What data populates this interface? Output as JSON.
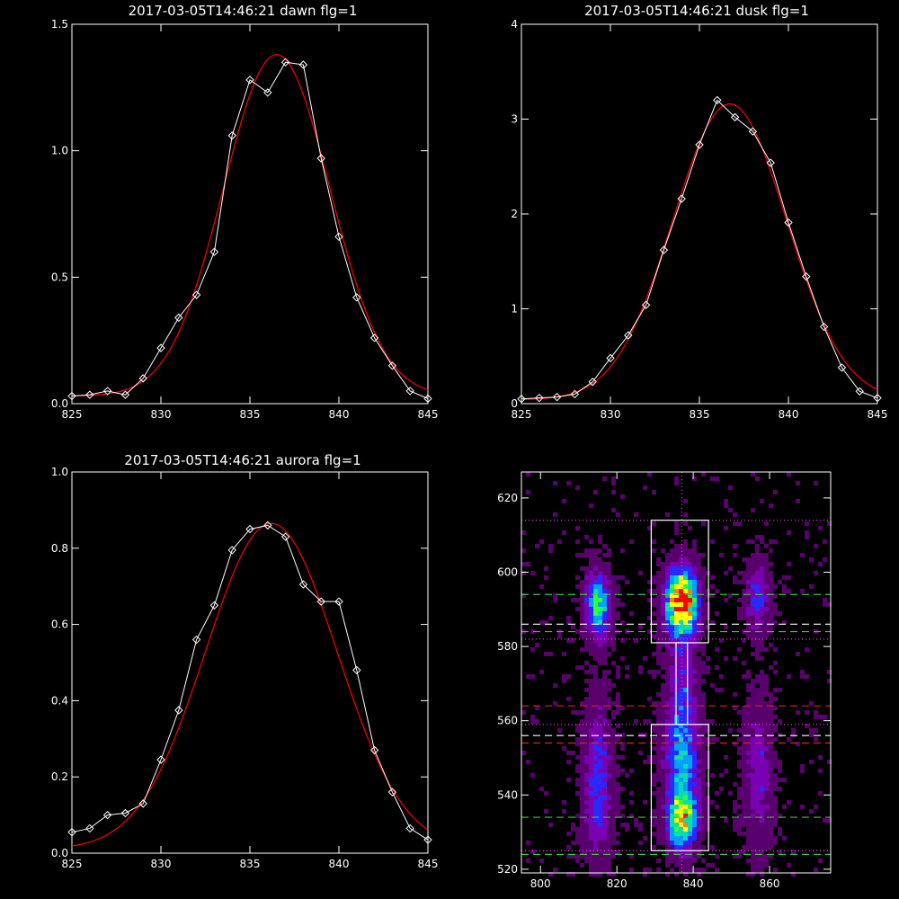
{
  "chart_data": [
    {
      "type": "line",
      "title": "2017-03-05T14:46:21 dawn flg=1",
      "xlim": [
        825,
        845
      ],
      "ylim": [
        0,
        1.5
      ],
      "xticks": [
        825,
        830,
        835,
        840,
        845
      ],
      "yticks": [
        0.0,
        0.5,
        1.0,
        1.5
      ],
      "ytick_labels": [
        "0.0",
        "0.5",
        "1.0",
        "1.5"
      ],
      "series": [
        {
          "style": "data",
          "color": "#ffffff",
          "marker": "diamond",
          "x": [
            825,
            826,
            827,
            828,
            829,
            830,
            831,
            832,
            833,
            834,
            835,
            836,
            837,
            838,
            839,
            840,
            841,
            842,
            843,
            844,
            845
          ],
          "y": [
            0.03,
            0.035,
            0.05,
            0.035,
            0.1,
            0.22,
            0.34,
            0.43,
            0.6,
            1.06,
            1.28,
            1.23,
            1.35,
            1.34,
            0.97,
            0.66,
            0.42,
            0.26,
            0.15,
            0.05,
            0.02
          ]
        },
        {
          "style": "fit",
          "color": "#ff0000",
          "model": "gaussian",
          "peak": 1.35,
          "center": 836.5,
          "sigma": 3.0,
          "offset": 0.03
        }
      ]
    },
    {
      "type": "line",
      "title": "2017-03-05T14:46:21 dusk flg=1",
      "xlim": [
        825,
        845
      ],
      "ylim": [
        0,
        4
      ],
      "xticks": [
        825,
        830,
        835,
        840,
        845
      ],
      "yticks": [
        0,
        1,
        2,
        3,
        4
      ],
      "ytick_labels": [
        "0",
        "1",
        "2",
        "3",
        "4"
      ],
      "series": [
        {
          "style": "data",
          "color": "#ffffff",
          "marker": "diamond",
          "x": [
            825,
            826,
            827,
            828,
            829,
            830,
            831,
            832,
            833,
            834,
            835,
            836,
            837,
            838,
            839,
            840,
            841,
            842,
            843,
            844,
            845
          ],
          "y": [
            0.05,
            0.06,
            0.07,
            0.1,
            0.23,
            0.48,
            0.72,
            1.04,
            1.62,
            2.16,
            2.73,
            3.2,
            3.02,
            2.87,
            2.54,
            1.91,
            1.34,
            0.81,
            0.38,
            0.13,
            0.06
          ]
        },
        {
          "style": "fit",
          "color": "#ff0000",
          "model": "gaussian",
          "peak": 3.12,
          "center": 836.7,
          "sigma": 3.2,
          "offset": 0.04
        }
      ]
    },
    {
      "type": "line",
      "title": "2017-03-05T14:46:21 aurora flg=1",
      "xlim": [
        825,
        845
      ],
      "ylim": [
        0,
        1.0
      ],
      "xticks": [
        825,
        830,
        835,
        840,
        845
      ],
      "yticks": [
        0.0,
        0.2,
        0.4,
        0.6,
        0.8,
        1.0
      ],
      "ytick_labels": [
        "0.0",
        "0.2",
        "0.4",
        "0.6",
        "0.8",
        "1.0"
      ],
      "series": [
        {
          "style": "data",
          "color": "#ffffff",
          "marker": "diamond",
          "x": [
            825,
            826,
            827,
            828,
            829,
            830,
            831,
            832,
            833,
            834,
            835,
            836,
            837,
            838,
            839,
            840,
            841,
            842,
            843,
            844,
            845
          ],
          "y": [
            0.055,
            0.065,
            0.1,
            0.105,
            0.13,
            0.245,
            0.375,
            0.56,
            0.65,
            0.795,
            0.85,
            0.86,
            0.83,
            0.705,
            0.66,
            0.66,
            0.48,
            0.27,
            0.16,
            0.065,
            0.035
          ]
        },
        {
          "style": "fit",
          "color": "#ff0000",
          "model": "gaussian",
          "peak": 0.855,
          "center": 836.2,
          "sigma": 3.7,
          "offset": 0.01
        }
      ]
    },
    {
      "type": "heatmap",
      "xlim": [
        795,
        876
      ],
      "ylim": [
        519,
        627
      ],
      "xticks": [
        800,
        820,
        840,
        860
      ],
      "yticks": [
        520,
        540,
        560,
        580,
        600,
        620
      ],
      "colormap": [
        "#000000",
        "#5a006e",
        "#7a00b4",
        "#2828ff",
        "#00a0ff",
        "#00e0b0",
        "#30ff30",
        "#ffff00",
        "#ff8000",
        "#ff0000"
      ],
      "blobs": [
        {
          "x": 837,
          "y": 592,
          "sx": 2.8,
          "sy": 6.0,
          "amp": 1.0
        },
        {
          "x": 837,
          "y": 533,
          "sx": 2.5,
          "sy": 5.0,
          "amp": 0.6
        },
        {
          "x": 837,
          "y": 548,
          "sx": 3.0,
          "sy": 12.0,
          "amp": 0.42
        },
        {
          "x": 837,
          "y": 570,
          "sx": 2.5,
          "sy": 10.0,
          "amp": 0.2
        },
        {
          "x": 815,
          "y": 591,
          "sx": 2.2,
          "sy": 6.0,
          "amp": 0.55
        },
        {
          "x": 815,
          "y": 543,
          "sx": 2.5,
          "sy": 14.0,
          "amp": 0.3
        },
        {
          "x": 857,
          "y": 593,
          "sx": 2.2,
          "sy": 6.0,
          "amp": 0.3
        },
        {
          "x": 857,
          "y": 545,
          "sx": 2.5,
          "sy": 14.0,
          "amp": 0.22
        }
      ],
      "boxes": [
        {
          "x0": 829,
          "x1": 844,
          "y0": 581,
          "y1": 614
        },
        {
          "x0": 829,
          "x1": 844,
          "y0": 525,
          "y1": 559
        },
        {
          "x0": 835.5,
          "x1": 838.5,
          "y0": 559,
          "y1": 581
        }
      ],
      "hlines": [
        {
          "y": 614,
          "color": "#ff40ff",
          "dash": "dot"
        },
        {
          "y": 594,
          "color": "#40c040",
          "dash": "dash"
        },
        {
          "y": 586,
          "color": "#ffffff",
          "dash": "dash"
        },
        {
          "y": 584,
          "color": "#40c040",
          "dash": "dash"
        },
        {
          "y": 582,
          "color": "#ff40ff",
          "dash": "dot"
        },
        {
          "y": 564,
          "color": "#e02020",
          "dash": "dash"
        },
        {
          "y": 559,
          "color": "#ff40ff",
          "dash": "dot"
        },
        {
          "y": 556,
          "color": "#ffffff",
          "dash": "dash"
        },
        {
          "y": 554,
          "color": "#e02020",
          "dash": "dash"
        },
        {
          "y": 534,
          "color": "#40c040",
          "dash": "dash"
        },
        {
          "y": 525,
          "color": "#ff40ff",
          "dash": "dot"
        },
        {
          "y": 524,
          "color": "#40c040",
          "dash": "dash"
        }
      ],
      "vlines": [
        {
          "x": 837,
          "color": "#ff40ff",
          "dash": "dot"
        }
      ]
    }
  ]
}
